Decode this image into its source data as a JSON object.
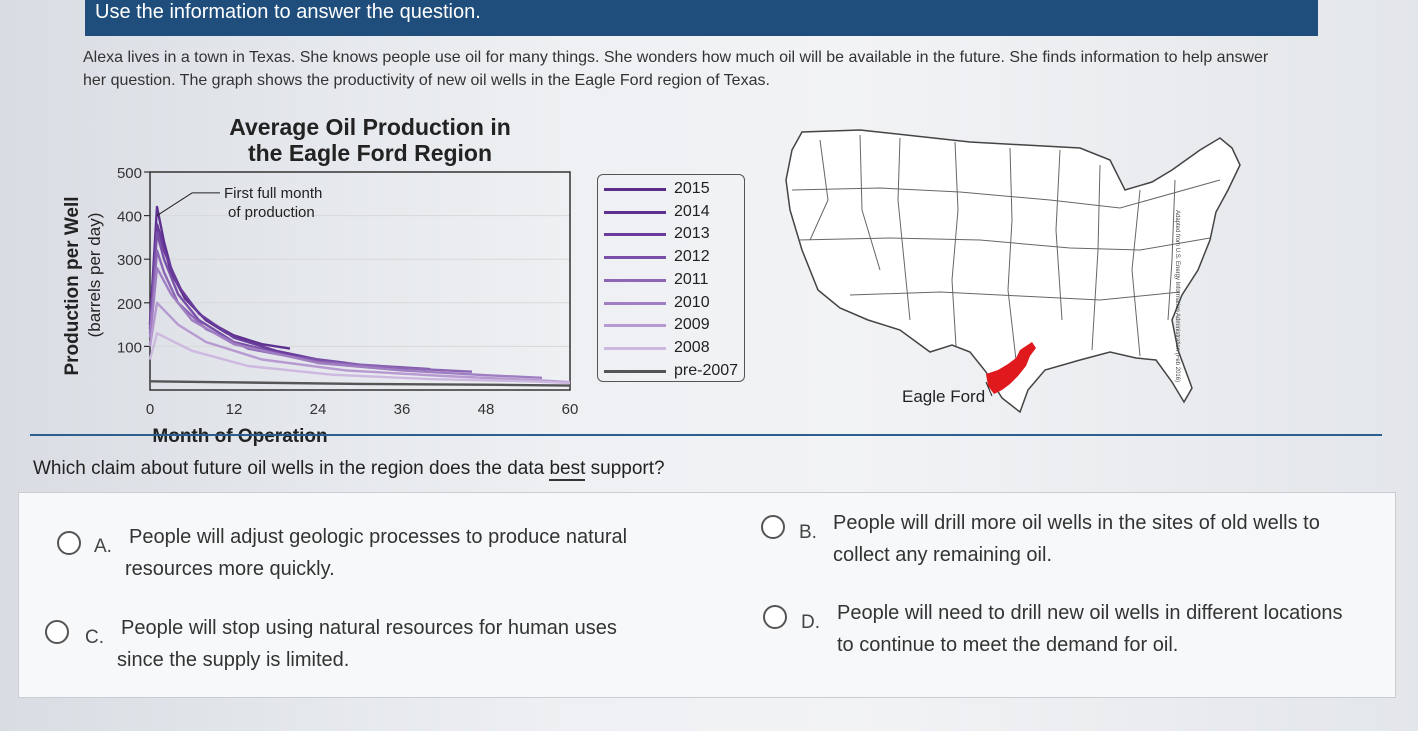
{
  "header": {
    "instruction": "Use the information to answer the question."
  },
  "intro": {
    "text": "Alexa lives in a town in Texas. She knows people use oil for many things. She wonders how much oil will be available in the future. She finds information to help answer her question. The graph shows the productivity of new oil wells in the Eagle Ford region of Texas."
  },
  "chart_data": {
    "type": "line",
    "title": "Average Oil Production in the Eagle Ford Region",
    "title_line1": "Average Oil Production in",
    "title_line2": "the Eagle Ford Region",
    "xlabel": "Month of Operation",
    "ylabel": "Production per Well",
    "ylabel_unit": "(barrels per day)",
    "xlim": [
      0,
      60
    ],
    "ylim": [
      0,
      500
    ],
    "x_ticks": [
      0,
      12,
      24,
      36,
      48,
      60
    ],
    "y_ticks": [
      100,
      200,
      300,
      400,
      500
    ],
    "annotation": "First full month of production",
    "annotation_line1": "First full month",
    "annotation_line2": "of production",
    "grid": "horizontal",
    "series": [
      {
        "name": "2015",
        "color": "#5b2d8a",
        "points": [
          [
            0,
            150
          ],
          [
            1,
            380
          ],
          [
            2,
            330
          ],
          [
            3,
            270
          ],
          [
            5,
            210
          ],
          [
            8,
            160
          ],
          [
            11,
            130
          ],
          [
            14,
            115
          ]
        ]
      },
      {
        "name": "2014",
        "color": "#5e3190",
        "points": [
          [
            0,
            150
          ],
          [
            1,
            420
          ],
          [
            2,
            340
          ],
          [
            3,
            280
          ],
          [
            5,
            210
          ],
          [
            8,
            160
          ],
          [
            12,
            125
          ],
          [
            16,
            105
          ],
          [
            20,
            95
          ]
        ]
      },
      {
        "name": "2013",
        "color": "#6a3d9c",
        "points": [
          [
            0,
            140
          ],
          [
            1,
            380
          ],
          [
            2,
            320
          ],
          [
            4,
            240
          ],
          [
            7,
            175
          ],
          [
            12,
            120
          ],
          [
            18,
            90
          ],
          [
            24,
            70
          ],
          [
            28,
            62
          ]
        ]
      },
      {
        "name": "2012",
        "color": "#7a4fa8",
        "points": [
          [
            0,
            140
          ],
          [
            1,
            360
          ],
          [
            2,
            300
          ],
          [
            4,
            220
          ],
          [
            7,
            160
          ],
          [
            12,
            110
          ],
          [
            20,
            78
          ],
          [
            30,
            58
          ],
          [
            40,
            48
          ]
        ]
      },
      {
        "name": "2011",
        "color": "#8c66b5",
        "points": [
          [
            0,
            130
          ],
          [
            1,
            320
          ],
          [
            2,
            270
          ],
          [
            4,
            200
          ],
          [
            8,
            140
          ],
          [
            14,
            95
          ],
          [
            24,
            65
          ],
          [
            36,
            50
          ],
          [
            46,
            42
          ]
        ]
      },
      {
        "name": "2010",
        "color": "#a07ec2",
        "points": [
          [
            0,
            120
          ],
          [
            1,
            280
          ],
          [
            3,
            220
          ],
          [
            6,
            160
          ],
          [
            12,
            105
          ],
          [
            24,
            62
          ],
          [
            36,
            45
          ],
          [
            48,
            34
          ],
          [
            56,
            28
          ]
        ]
      },
      {
        "name": "2009",
        "color": "#b79ad1",
        "points": [
          [
            0,
            100
          ],
          [
            1,
            200
          ],
          [
            4,
            150
          ],
          [
            8,
            110
          ],
          [
            16,
            70
          ],
          [
            28,
            45
          ],
          [
            42,
            32
          ],
          [
            56,
            22
          ],
          [
            60,
            18
          ]
        ]
      },
      {
        "name": "2008",
        "color": "#cdb8e0",
        "points": [
          [
            0,
            70
          ],
          [
            1,
            130
          ],
          [
            6,
            90
          ],
          [
            14,
            55
          ],
          [
            26,
            35
          ],
          [
            40,
            25
          ],
          [
            54,
            20
          ],
          [
            60,
            16
          ]
        ]
      },
      {
        "name": "pre-2007",
        "color": "#555555",
        "points": [
          [
            0,
            20
          ],
          [
            10,
            18
          ],
          [
            30,
            14
          ],
          [
            50,
            12
          ],
          [
            60,
            10
          ]
        ]
      }
    ]
  },
  "legend": {
    "items": [
      {
        "label": "2015",
        "color": "#5b2d8a"
      },
      {
        "label": "2014",
        "color": "#5e3190"
      },
      {
        "label": "2013",
        "color": "#6a3d9c"
      },
      {
        "label": "2012",
        "color": "#7a4fa8"
      },
      {
        "label": "2011",
        "color": "#8c66b5"
      },
      {
        "label": "2010",
        "color": "#a07ec2"
      },
      {
        "label": "2009",
        "color": "#b79ad1"
      },
      {
        "label": "2008",
        "color": "#cdb8e0"
      },
      {
        "label": "pre-2007",
        "color": "#555555"
      }
    ]
  },
  "map": {
    "region_label": "Eagle Ford",
    "highlight_color": "#e0191c",
    "source": "Adapted from U.S. Energy Information Administration (Feb 2016)"
  },
  "question": {
    "before": "Which claim about future oil wells in the region does the data ",
    "emphasis": "best",
    "after": " support?"
  },
  "options": [
    {
      "letter": "A.",
      "line1": "People will adjust geologic processes to produce natural",
      "line2": "resources more quickly."
    },
    {
      "letter": "B.",
      "line1": "People will drill more oil wells in the sites of old wells to",
      "line2": "collect any remaining oil."
    },
    {
      "letter": "C.",
      "line1": "People will stop using natural resources for human uses",
      "line2": "since the supply is limited."
    },
    {
      "letter": "D.",
      "line1": "People will need to drill new oil wells in different locations",
      "line2": "to continue to meet the demand for oil."
    }
  ]
}
